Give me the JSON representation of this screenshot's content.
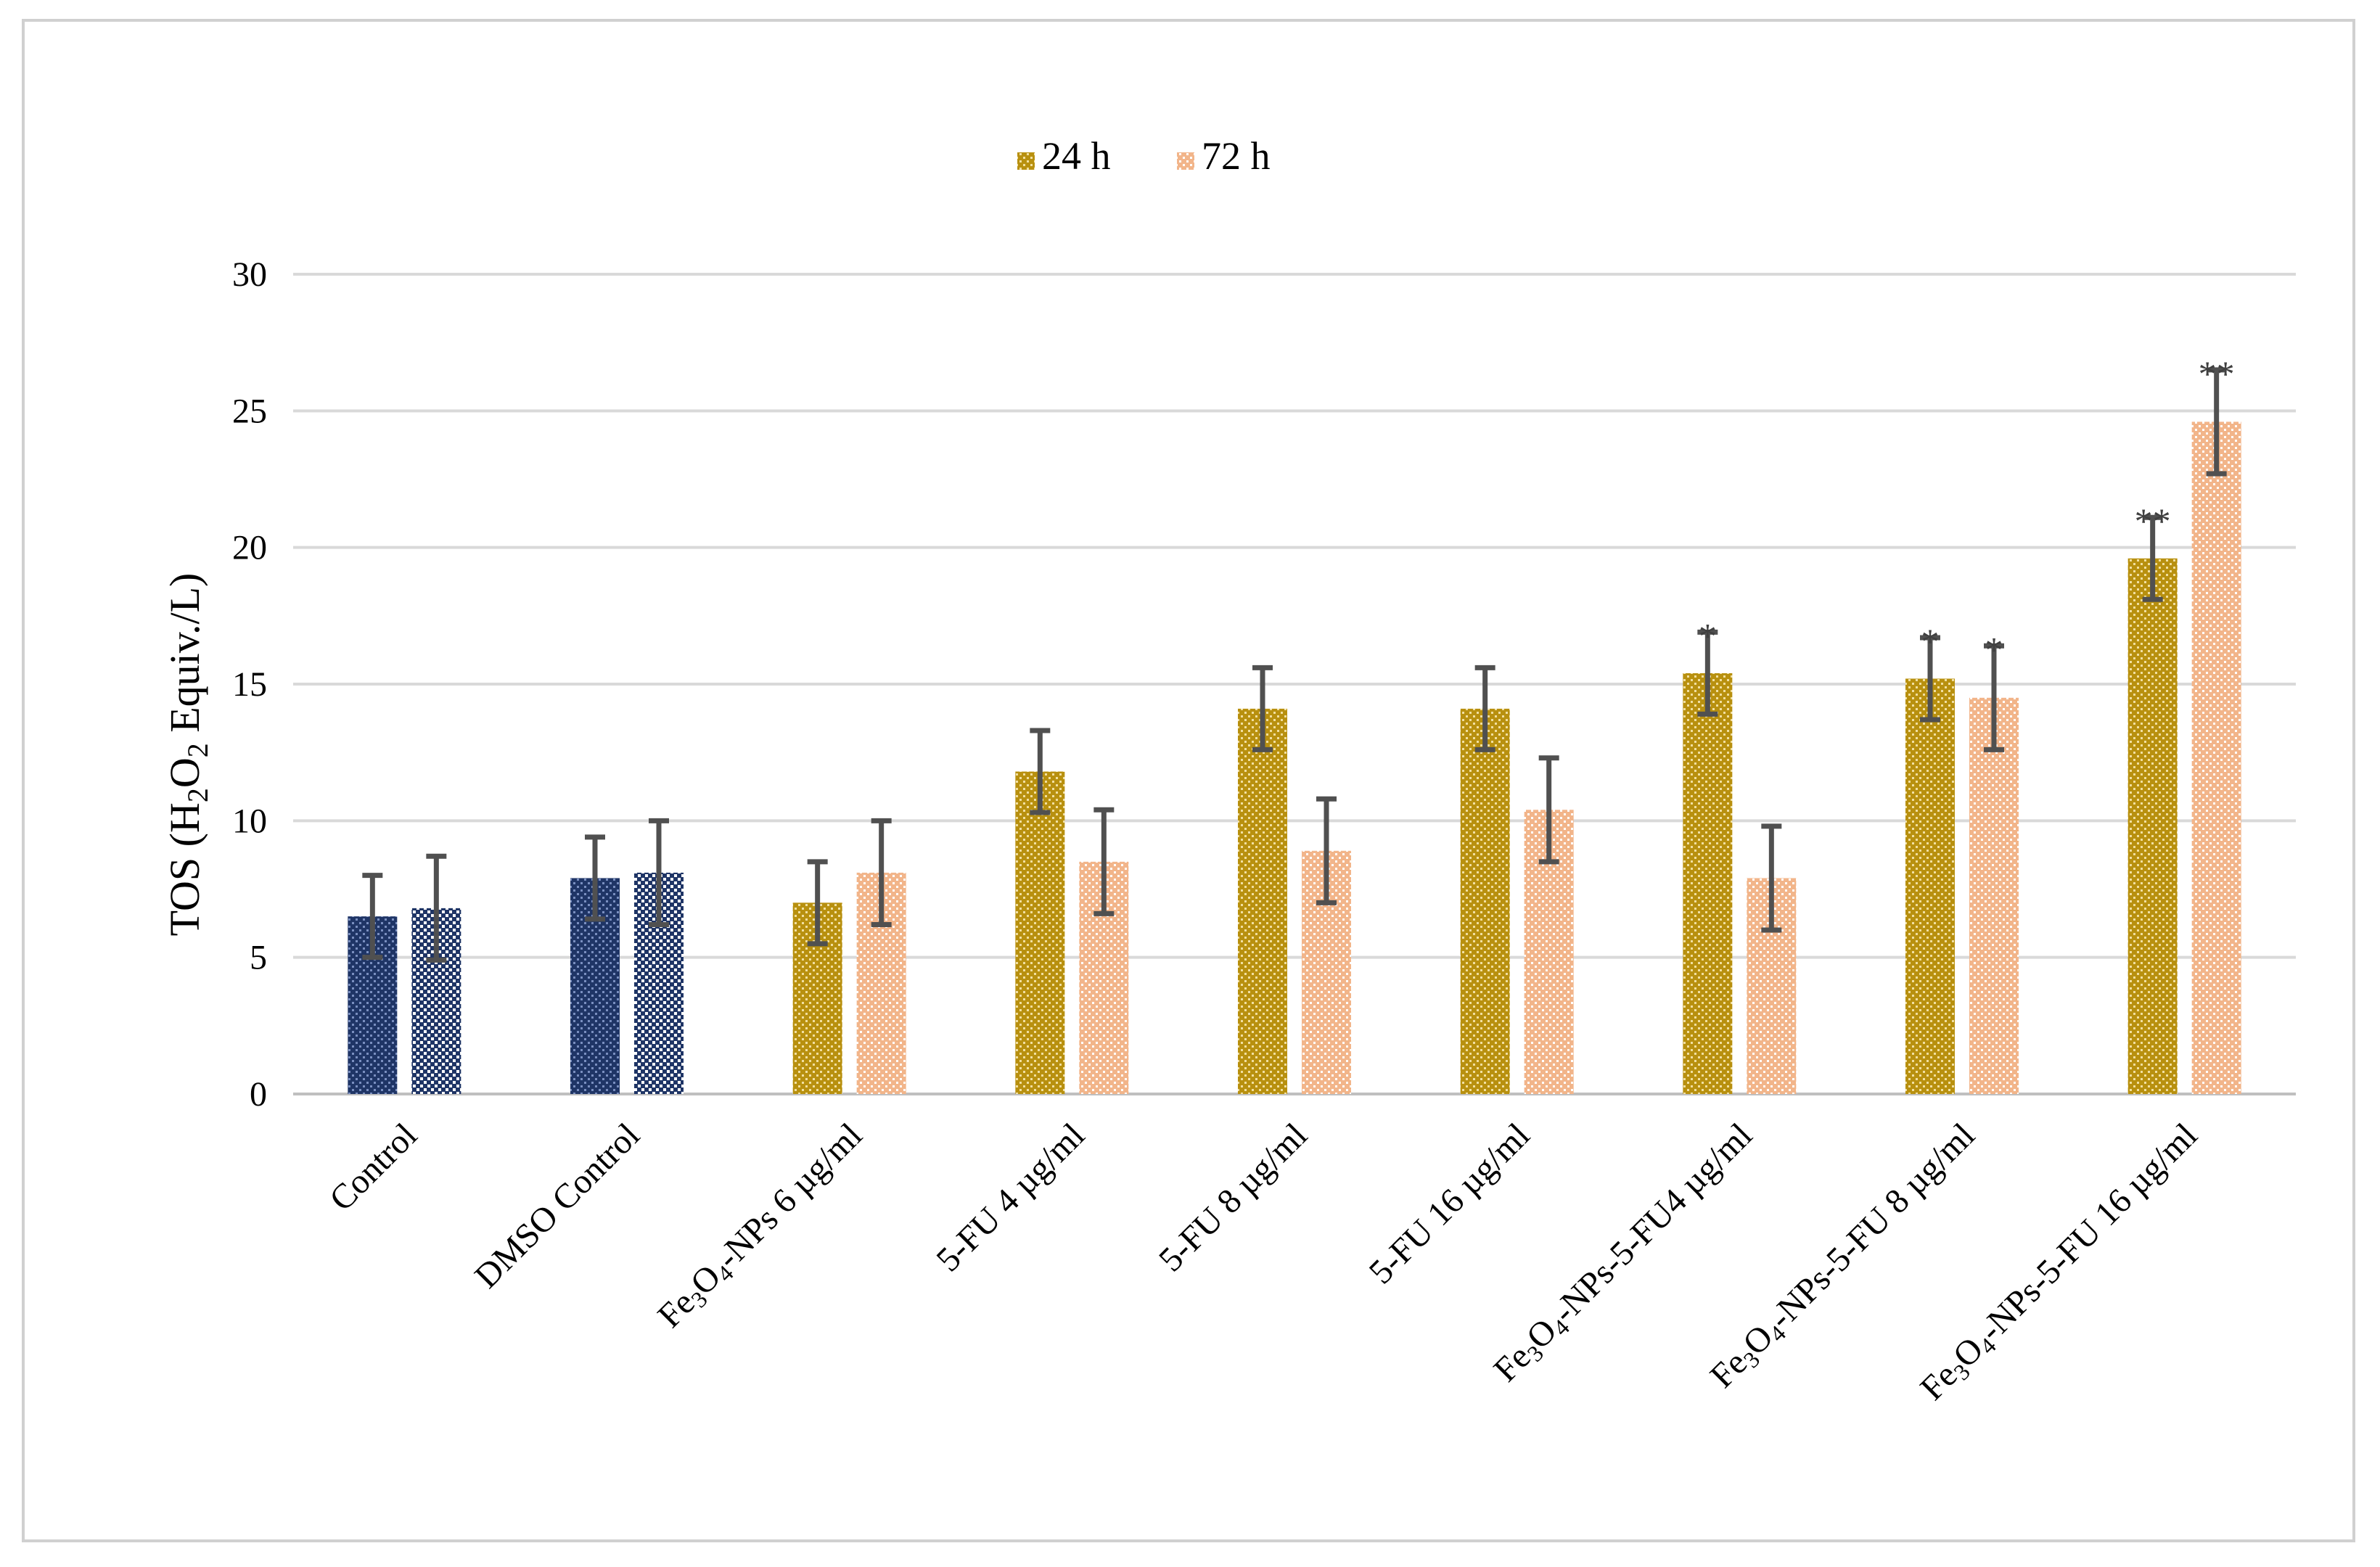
{
  "chart_data": {
    "type": "bar",
    "title": "",
    "xlabel": "",
    "ylabel": "TOS (H2O2 Equiv./L)",
    "ylabel_parts": {
      "prefix": "TOS (H",
      "sub1": "2",
      "mid": "O",
      "sub2": "2",
      "suffix": " Equiv./L)"
    },
    "ylim": [
      0,
      30
    ],
    "yticks": [
      0,
      5,
      10,
      15,
      20,
      25,
      30
    ],
    "grid": true,
    "legend_position": "top-center",
    "categories": [
      "Control",
      "DMSO Control",
      "Fe3O4-NPs 6  µg/ml",
      "5-FU 4 µg/ml",
      "5-FU 8 µg/ml",
      "5-FU 16 µg/ml",
      "Fe3O4-NPs-5-FU4 µg/ml",
      "Fe3O4-NPs-5-FU 8 µg/ml",
      "Fe3O4-NPs-5-FU 16 µg/ml"
    ],
    "category_labels": [
      [
        {
          "t": "Control"
        }
      ],
      [
        {
          "t": "DMSO Control"
        }
      ],
      [
        {
          "t": "Fe"
        },
        {
          "t": "3",
          "sub": true
        },
        {
          "t": "O"
        },
        {
          "t": "4",
          "sub": true
        },
        {
          "t": "-NPs 6  µg/ml"
        }
      ],
      [
        {
          "t": "5-FU 4 µg/ml"
        }
      ],
      [
        {
          "t": "5-FU 8 µg/ml"
        }
      ],
      [
        {
          "t": "5-FU 16 µg/ml"
        }
      ],
      [
        {
          "t": "Fe"
        },
        {
          "t": "3",
          "sub": true
        },
        {
          "t": "O"
        },
        {
          "t": "4",
          "sub": true
        },
        {
          "t": "-NPs-5-FU4 µg/ml"
        }
      ],
      [
        {
          "t": "Fe"
        },
        {
          "t": "3",
          "sub": true
        },
        {
          "t": "O"
        },
        {
          "t": "4",
          "sub": true
        },
        {
          "t": "-NPs-5-FU 8 µg/ml"
        }
      ],
      [
        {
          "t": "Fe"
        },
        {
          "t": "3",
          "sub": true
        },
        {
          "t": "O"
        },
        {
          "t": "4",
          "sub": true
        },
        {
          "t": "-NPs-5-FU 16 µg/ml"
        }
      ]
    ],
    "series": [
      {
        "name": "24 h",
        "values": [
          6.5,
          7.9,
          7.0,
          11.8,
          14.1,
          14.1,
          15.4,
          15.2,
          19.6
        ],
        "errors": [
          1.5,
          1.5,
          1.5,
          1.5,
          1.5,
          1.5,
          1.5,
          1.5,
          1.5
        ],
        "significance": [
          "",
          "",
          "",
          "",
          "",
          "",
          "*",
          "*",
          "**"
        ]
      },
      {
        "name": "72 h",
        "values": [
          6.8,
          8.1,
          8.1,
          8.5,
          8.9,
          10.4,
          7.9,
          14.5,
          24.6
        ],
        "errors": [
          1.9,
          1.9,
          1.9,
          1.9,
          1.9,
          1.9,
          1.9,
          1.9,
          1.9
        ],
        "significance": [
          "",
          "",
          "",
          "",
          "",
          "",
          "",
          "*",
          "**"
        ]
      }
    ],
    "colors": {
      "control_24h": "#1f3566",
      "control_72h": "#1f3566",
      "series_24h": "#b8900f",
      "series_72h": "#f2b58a",
      "error_bar": "#505050",
      "grid": "#d9d9d9",
      "axis": "#bfbfbf"
    },
    "control_category_count": 2
  }
}
